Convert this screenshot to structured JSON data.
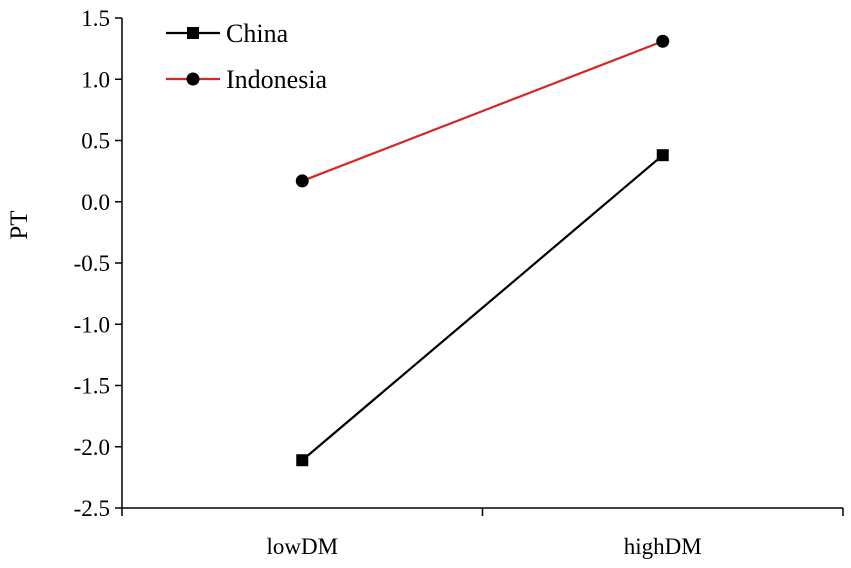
{
  "chart_data": {
    "type": "line",
    "categories": [
      "lowDM",
      "highDM"
    ],
    "series": [
      {
        "name": "China",
        "values": [
          -2.11,
          0.38
        ],
        "color": "#000000",
        "marker": "square"
      },
      {
        "name": "Indonesia",
        "values": [
          0.17,
          1.31
        ],
        "color": "#d62728",
        "marker": "circle"
      }
    ],
    "ylabel": "PT",
    "xlabel": "",
    "ylim": [
      -2.5,
      1.5
    ],
    "yticks": [
      "-2.5",
      "-2.0",
      "-1.5",
      "-1.0",
      "-0.5",
      "0.0",
      "0.5",
      "1.0",
      "1.5"
    ],
    "grid": false,
    "legend_position": "top-left"
  }
}
